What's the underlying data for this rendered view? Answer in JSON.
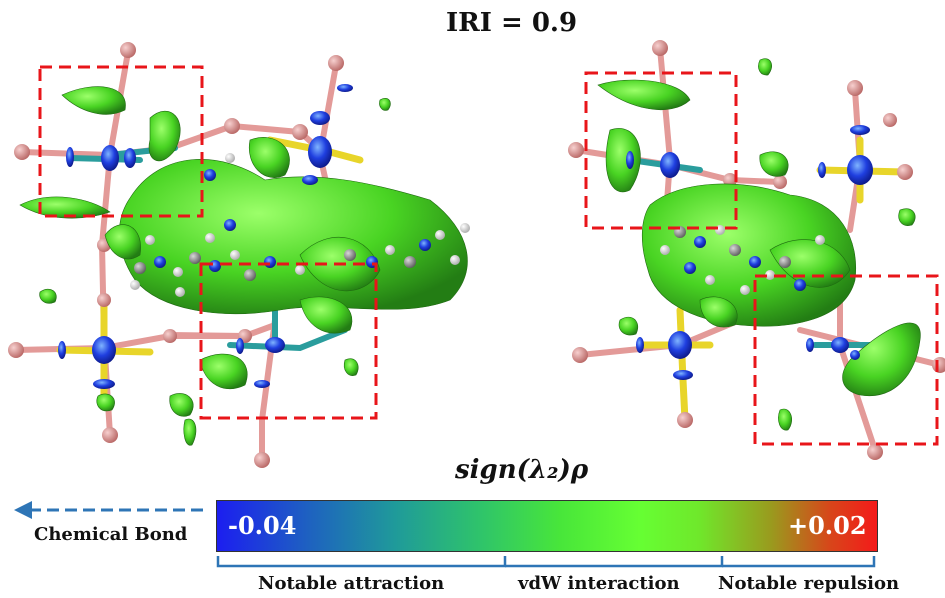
{
  "title": "IRI = 0.9",
  "colorbar": {
    "axis_title": "sign(λ₂)ρ",
    "min_label": "-0.04",
    "max_label": "+0.02",
    "arrow_label": "Chemical Bond",
    "ranges": [
      "Notable attraction",
      "vdW interaction",
      "Notable repulsion"
    ]
  },
  "colors": {
    "highlight_box": "#e8151a",
    "arrow": "#2e75b6",
    "bracket": "#2e75b6",
    "bond_teal": "#2a9d9d",
    "bond_yellow": "#e8d52a",
    "bond_pink": "#e39a98",
    "surface_green": "#4fd62a",
    "lobe_blue": "#1a3ae0"
  }
}
